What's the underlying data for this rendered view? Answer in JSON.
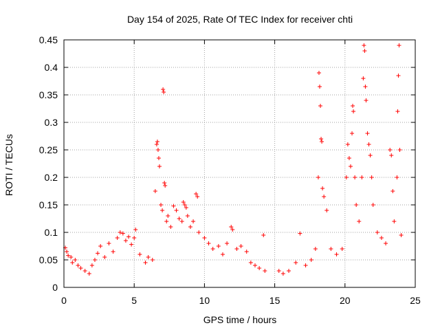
{
  "chart_data": {
    "type": "scatter",
    "title": "Day 154 of 2025, Rate Of TEC Index for receiver chti",
    "xlabel": "GPS time / hours",
    "ylabel": "ROTI / TECUs",
    "xlim": [
      0,
      25
    ],
    "ylim": [
      0,
      0.45
    ],
    "x_ticks": [
      "0",
      "5",
      "10",
      "15",
      "20",
      "25"
    ],
    "y_ticks": [
      "0",
      "0.05",
      "0.1",
      "0.15",
      "0.2",
      "0.25",
      "0.3",
      "0.35",
      "0.4",
      "0.45"
    ],
    "grid": true,
    "marker": "+",
    "color": "#ff0000",
    "points": [
      [
        0.1,
        0.072
      ],
      [
        0.2,
        0.065
      ],
      [
        0.3,
        0.058
      ],
      [
        0.5,
        0.055
      ],
      [
        0.6,
        0.045
      ],
      [
        0.8,
        0.05
      ],
      [
        1.0,
        0.04
      ],
      [
        1.2,
        0.035
      ],
      [
        1.5,
        0.03
      ],
      [
        1.8,
        0.025
      ],
      [
        2.0,
        0.04
      ],
      [
        2.2,
        0.05
      ],
      [
        2.4,
        0.062
      ],
      [
        2.6,
        0.075
      ],
      [
        2.9,
        0.055
      ],
      [
        3.2,
        0.08
      ],
      [
        3.5,
        0.065
      ],
      [
        3.8,
        0.09
      ],
      [
        4.0,
        0.1
      ],
      [
        4.2,
        0.098
      ],
      [
        4.4,
        0.085
      ],
      [
        4.6,
        0.092
      ],
      [
        4.8,
        0.078
      ],
      [
        5.0,
        0.09
      ],
      [
        5.1,
        0.105
      ],
      [
        5.4,
        0.06
      ],
      [
        5.8,
        0.045
      ],
      [
        6.0,
        0.055
      ],
      [
        6.3,
        0.05
      ],
      [
        6.5,
        0.175
      ],
      [
        6.6,
        0.26
      ],
      [
        6.65,
        0.265
      ],
      [
        6.7,
        0.25
      ],
      [
        6.75,
        0.235
      ],
      [
        6.8,
        0.22
      ],
      [
        6.9,
        0.15
      ],
      [
        7.0,
        0.14
      ],
      [
        7.05,
        0.36
      ],
      [
        7.1,
        0.355
      ],
      [
        7.15,
        0.19
      ],
      [
        7.2,
        0.185
      ],
      [
        7.3,
        0.12
      ],
      [
        7.4,
        0.13
      ],
      [
        7.6,
        0.11
      ],
      [
        7.8,
        0.148
      ],
      [
        8.0,
        0.14
      ],
      [
        8.2,
        0.125
      ],
      [
        8.4,
        0.12
      ],
      [
        8.5,
        0.155
      ],
      [
        8.6,
        0.15
      ],
      [
        8.7,
        0.145
      ],
      [
        8.8,
        0.13
      ],
      [
        9.0,
        0.11
      ],
      [
        9.2,
        0.12
      ],
      [
        9.4,
        0.17
      ],
      [
        9.5,
        0.165
      ],
      [
        9.6,
        0.1
      ],
      [
        10.0,
        0.09
      ],
      [
        10.3,
        0.08
      ],
      [
        10.6,
        0.07
      ],
      [
        11.0,
        0.075
      ],
      [
        11.3,
        0.06
      ],
      [
        11.6,
        0.08
      ],
      [
        11.9,
        0.11
      ],
      [
        12.0,
        0.105
      ],
      [
        12.3,
        0.07
      ],
      [
        12.6,
        0.075
      ],
      [
        13.0,
        0.065
      ],
      [
        13.3,
        0.045
      ],
      [
        13.6,
        0.04
      ],
      [
        13.9,
        0.035
      ],
      [
        14.2,
        0.095
      ],
      [
        14.3,
        0.03
      ],
      [
        15.3,
        0.03
      ],
      [
        15.6,
        0.025
      ],
      [
        16.0,
        0.03
      ],
      [
        16.5,
        0.045
      ],
      [
        16.8,
        0.098
      ],
      [
        17.2,
        0.04
      ],
      [
        17.6,
        0.05
      ],
      [
        17.9,
        0.07
      ],
      [
        18.1,
        0.2
      ],
      [
        18.15,
        0.39
      ],
      [
        18.2,
        0.365
      ],
      [
        18.25,
        0.33
      ],
      [
        18.3,
        0.27
      ],
      [
        18.35,
        0.265
      ],
      [
        18.4,
        0.18
      ],
      [
        18.5,
        0.165
      ],
      [
        18.7,
        0.14
      ],
      [
        19.0,
        0.07
      ],
      [
        19.4,
        0.06
      ],
      [
        19.8,
        0.07
      ],
      [
        20.1,
        0.2
      ],
      [
        20.2,
        0.26
      ],
      [
        20.3,
        0.235
      ],
      [
        20.4,
        0.22
      ],
      [
        20.5,
        0.28
      ],
      [
        20.55,
        0.33
      ],
      [
        20.6,
        0.32
      ],
      [
        20.7,
        0.2
      ],
      [
        20.8,
        0.15
      ],
      [
        21.0,
        0.12
      ],
      [
        21.2,
        0.2
      ],
      [
        21.3,
        0.38
      ],
      [
        21.35,
        0.44
      ],
      [
        21.4,
        0.43
      ],
      [
        21.45,
        0.365
      ],
      [
        21.5,
        0.34
      ],
      [
        21.6,
        0.28
      ],
      [
        21.7,
        0.26
      ],
      [
        21.8,
        0.24
      ],
      [
        21.9,
        0.2
      ],
      [
        22.0,
        0.15
      ],
      [
        22.3,
        0.1
      ],
      [
        22.6,
        0.09
      ],
      [
        22.9,
        0.08
      ],
      [
        23.2,
        0.25
      ],
      [
        23.3,
        0.24
      ],
      [
        23.4,
        0.175
      ],
      [
        23.5,
        0.12
      ],
      [
        23.7,
        0.2
      ],
      [
        23.75,
        0.32
      ],
      [
        23.8,
        0.385
      ],
      [
        23.85,
        0.44
      ],
      [
        23.9,
        0.25
      ],
      [
        24.0,
        0.095
      ]
    ]
  }
}
